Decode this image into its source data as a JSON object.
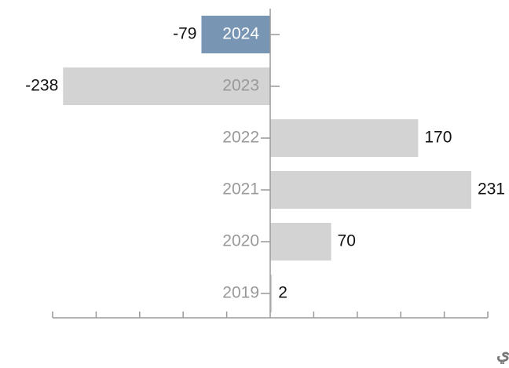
{
  "chart_data": {
    "type": "barh",
    "categories": [
      "2024",
      "2023",
      "2022",
      "2021",
      "2020",
      "2019"
    ],
    "values": [
      -79,
      -238,
      170,
      231,
      70,
      2
    ],
    "colors": [
      "#7896b4",
      "#d3d3d3",
      "#d3d3d3",
      "#d3d3d3",
      "#d3d3d3",
      "#d3d3d3"
    ],
    "xlim": [
      -250,
      250
    ],
    "xticks": [
      -250,
      -200,
      -150,
      -100,
      -50,
      0,
      50,
      100,
      150,
      200,
      250
    ],
    "xlabel": "مليون ريال سعودي"
  }
}
